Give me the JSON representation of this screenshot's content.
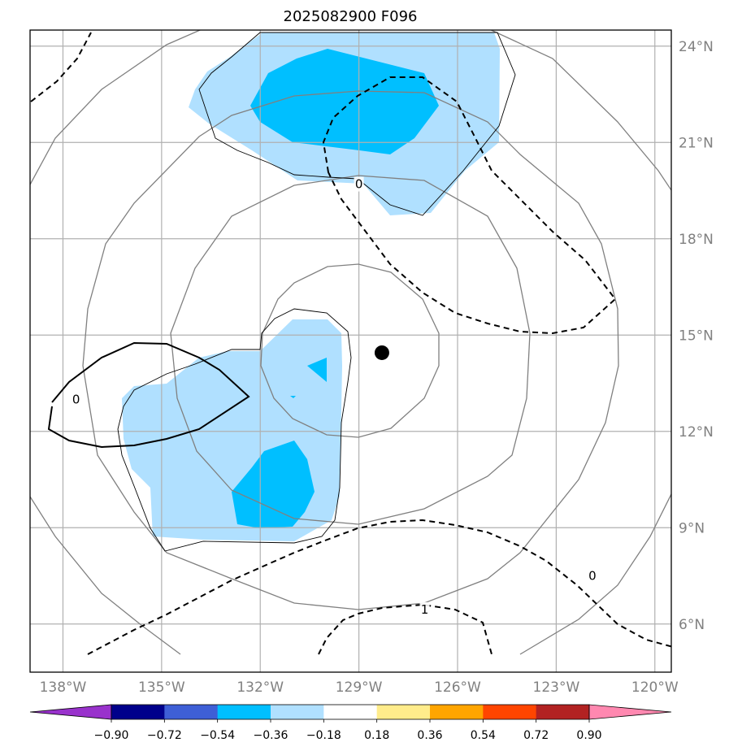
{
  "title": "2025082900 F096",
  "map": {
    "lon_range": [
      -139,
      -119.5
    ],
    "lat_range": [
      4.5,
      24.5
    ],
    "lon_ticks": [
      {
        "value": -138,
        "label": "138°W"
      },
      {
        "value": -135,
        "label": "135°W"
      },
      {
        "value": -132,
        "label": "132°W"
      },
      {
        "value": -129,
        "label": "129°W"
      },
      {
        "value": -126,
        "label": "126°W"
      },
      {
        "value": -123,
        "label": "123°W"
      },
      {
        "value": -120,
        "label": "120°W"
      }
    ],
    "lat_ticks": [
      {
        "value": 6,
        "label": "6°N"
      },
      {
        "value": 9,
        "label": "9°N"
      },
      {
        "value": 12,
        "label": "12°N"
      },
      {
        "value": 15,
        "label": "15°N"
      },
      {
        "value": 18,
        "label": "18°N"
      },
      {
        "value": 21,
        "label": "21°N"
      },
      {
        "value": 24,
        "label": "24°N"
      }
    ],
    "storm_center": {
      "lon": -128.3,
      "lat": 14.45
    },
    "contour_labels": [
      {
        "text": "0",
        "lon": -137.6,
        "lat": 13.0
      },
      {
        "text": "0",
        "lon": -129.0,
        "lat": 19.7
      },
      {
        "text": "0",
        "lon": -121.9,
        "lat": 7.5
      },
      {
        "text": "1",
        "lon": -127.0,
        "lat": 6.45
      }
    ]
  },
  "colorbar": {
    "ticks": [
      "−0.90",
      "−0.72",
      "−0.54",
      "−0.36",
      "−0.18",
      "0.18",
      "0.36",
      "0.54",
      "0.72",
      "0.90"
    ],
    "colors": {
      "under": "#9932cc",
      "bins": [
        "#00008b",
        "#3e5fd6",
        "#00bfff",
        "#b0e0ff",
        "#ffffff",
        "#ffec8b",
        "#ffa500",
        "#ff4500",
        "#b22222"
      ],
      "over": "#ff88b0"
    }
  },
  "colors": {
    "fill_light": "#b0e0ff",
    "fill_mid": "#00bfff",
    "gridline": "#b0b0b0",
    "range_ring": "#808080"
  }
}
